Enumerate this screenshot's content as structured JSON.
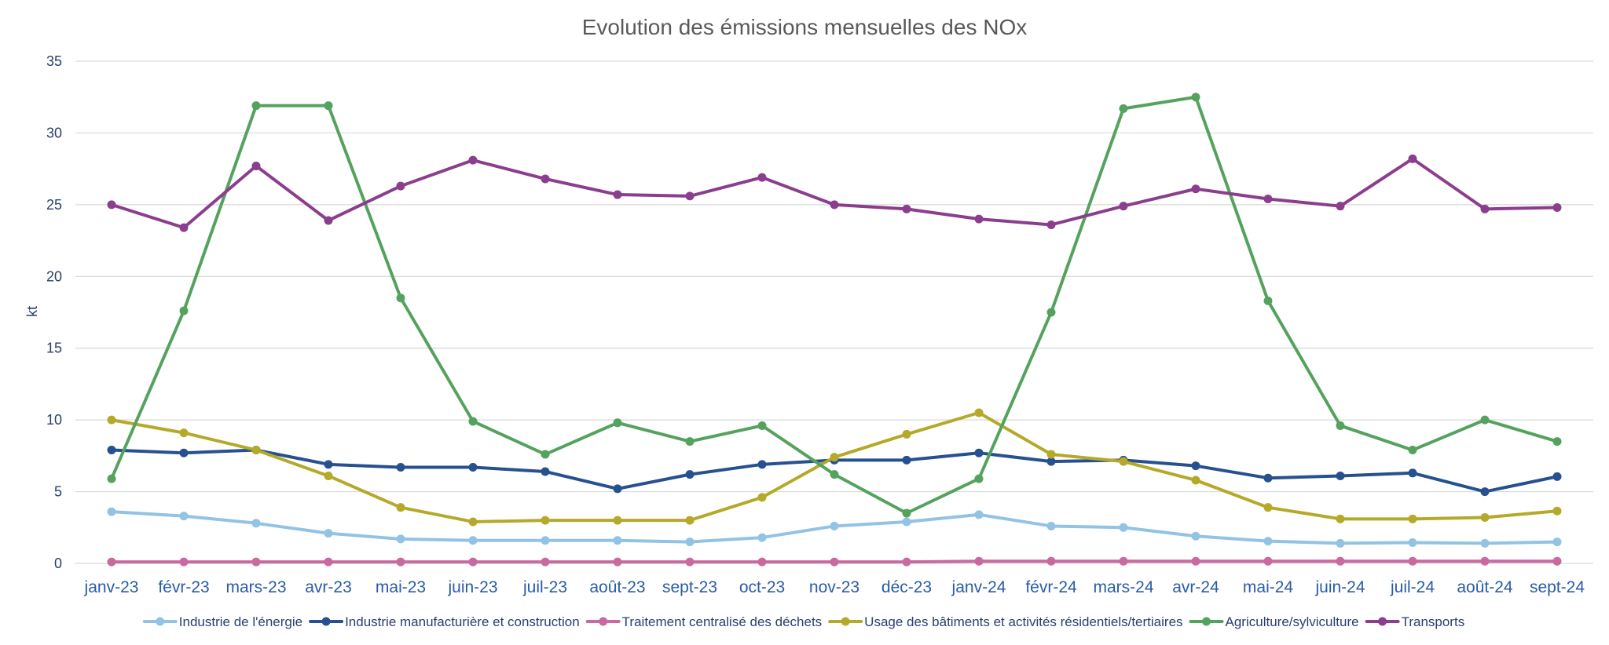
{
  "chart_data": {
    "type": "line",
    "title": "Evolution des émissions mensuelles des NOx",
    "xlabel": "",
    "ylabel": "kt",
    "ylim": [
      0,
      35
    ],
    "yticks": [
      "0",
      "5",
      "10",
      "15",
      "20",
      "25",
      "30",
      "35"
    ],
    "grid": true,
    "legend_position": "bottom",
    "categories": [
      "janv-23",
      "févr-23",
      "mars-23",
      "avr-23",
      "mai-23",
      "juin-23",
      "juil-23",
      "août-23",
      "sept-23",
      "oct-23",
      "nov-23",
      "déc-23",
      "janv-24",
      "févr-24",
      "mars-24",
      "avr-24",
      "mai-24",
      "juin-24",
      "juil-24",
      "août-24",
      "sept-24"
    ],
    "series": [
      {
        "name": "Industrie de l'énergie",
        "color": "#92c3e4",
        "values": [
          3.6,
          3.3,
          2.8,
          2.1,
          1.7,
          1.6,
          1.6,
          1.6,
          1.5,
          1.8,
          2.6,
          2.9,
          3.4,
          2.6,
          2.5,
          1.9,
          1.55,
          1.4,
          1.45,
          1.4,
          1.5
        ]
      },
      {
        "name": "Industrie manufacturière et construction",
        "color": "#26508f",
        "values": [
          7.9,
          7.7,
          7.9,
          6.9,
          6.7,
          6.7,
          6.4,
          5.2,
          6.2,
          6.9,
          7.2,
          7.2,
          7.7,
          7.1,
          7.2,
          6.8,
          5.95,
          6.1,
          6.3,
          5.0,
          6.05
        ]
      },
      {
        "name": "Traitement centralisé des déchets",
        "color": "#c9699f",
        "values": [
          0.1,
          0.1,
          0.1,
          0.1,
          0.1,
          0.1,
          0.1,
          0.1,
          0.1,
          0.1,
          0.1,
          0.1,
          0.15,
          0.15,
          0.15,
          0.15,
          0.15,
          0.15,
          0.15,
          0.15,
          0.15
        ]
      },
      {
        "name": "Usage des bâtiments et activités résidentiels/tertiaires",
        "color": "#b5a92a",
        "values": [
          10.0,
          9.1,
          7.9,
          6.1,
          3.9,
          2.9,
          3.0,
          3.0,
          3.0,
          4.6,
          7.4,
          9.0,
          10.5,
          7.6,
          7.1,
          5.8,
          3.9,
          3.1,
          3.1,
          3.2,
          3.65
        ]
      },
      {
        "name": "Agriculture/sylviculture",
        "color": "#55a25f",
        "values": [
          5.9,
          17.6,
          31.9,
          31.9,
          18.5,
          9.9,
          7.6,
          9.8,
          8.5,
          9.6,
          6.2,
          3.5,
          5.9,
          17.5,
          31.7,
          32.5,
          18.3,
          9.6,
          7.9,
          10.0,
          8.5
        ]
      },
      {
        "name": "Transports",
        "color": "#8b3d8e",
        "values": [
          25.0,
          23.4,
          27.7,
          23.9,
          26.3,
          28.1,
          26.8,
          25.7,
          25.6,
          26.9,
          25.0,
          24.7,
          24.0,
          23.6,
          24.9,
          26.1,
          25.4,
          24.9,
          28.2,
          24.7,
          24.8
        ]
      }
    ]
  }
}
